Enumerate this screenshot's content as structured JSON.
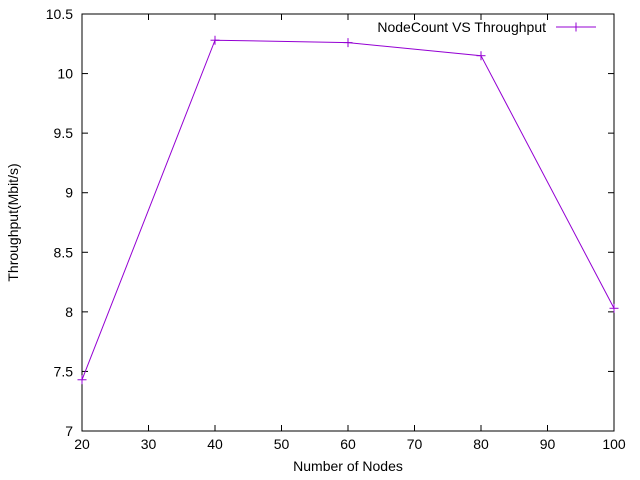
{
  "chart_data": {
    "type": "line",
    "title": "",
    "xlabel": "Number of Nodes",
    "ylabel": "Throughput(Mbit/s)",
    "xlim": [
      20,
      100
    ],
    "ylim": [
      7,
      10.5
    ],
    "x_ticks": [
      20,
      30,
      40,
      50,
      60,
      70,
      80,
      90,
      100
    ],
    "y_ticks": [
      7,
      7.5,
      8,
      8.5,
      9,
      9.5,
      10,
      10.5
    ],
    "x_tick_labels": [
      "20",
      "30",
      "40",
      "50",
      "60",
      "70",
      "80",
      "90",
      "100"
    ],
    "y_tick_labels": [
      "7",
      "7.5",
      "8",
      "8.5",
      "9",
      "9.5",
      "10",
      "10.5"
    ],
    "grid": false,
    "legend_position": "top-right",
    "series": [
      {
        "name": "NodeCount VS Throughput",
        "color": "#9400d3",
        "marker": "plus",
        "x": [
          20,
          40,
          60,
          80,
          100
        ],
        "y": [
          7.43,
          10.28,
          10.26,
          10.15,
          8.03
        ]
      }
    ]
  }
}
